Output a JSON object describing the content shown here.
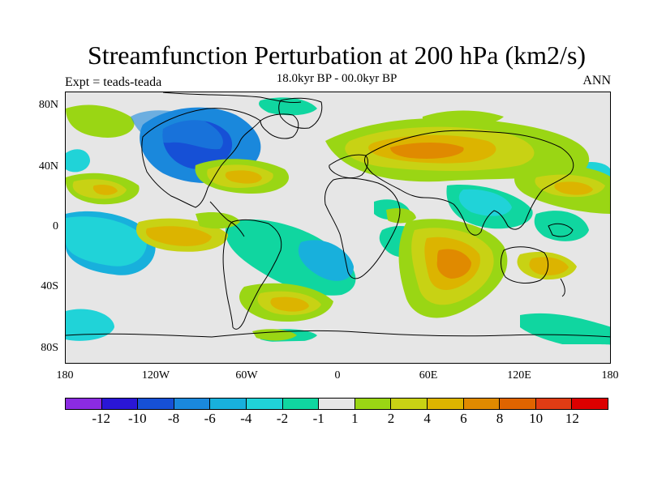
{
  "title": "Streamfunction Perturbation at 200 hPa (km2/s)",
  "subtitle": "18.0kyr BP - 00.0kyr BP",
  "left_label": "Expt = teads-teada",
  "right_label": "ANN",
  "lat_labels": [
    "80N",
    "40N",
    "0",
    "40S",
    "80S"
  ],
  "lon_labels": [
    "180",
    "120W",
    "60W",
    "0",
    "60E",
    "120E",
    "180"
  ],
  "colorbar": {
    "colors": [
      "#8b2be2",
      "#2a16d6",
      "#1650d6",
      "#1a88dc",
      "#18b0dc",
      "#20d3d8",
      "#10d6a0",
      "#e6e6e6",
      "#9ad614",
      "#c8d214",
      "#dcb400",
      "#e08a00",
      "#e06400",
      "#e03c14",
      "#dc0000"
    ],
    "labels": [
      "-12",
      "-10",
      "-8",
      "-6",
      "-4",
      "-2",
      "-1",
      "1",
      "2",
      "4",
      "6",
      "8",
      "10",
      "12"
    ]
  }
}
